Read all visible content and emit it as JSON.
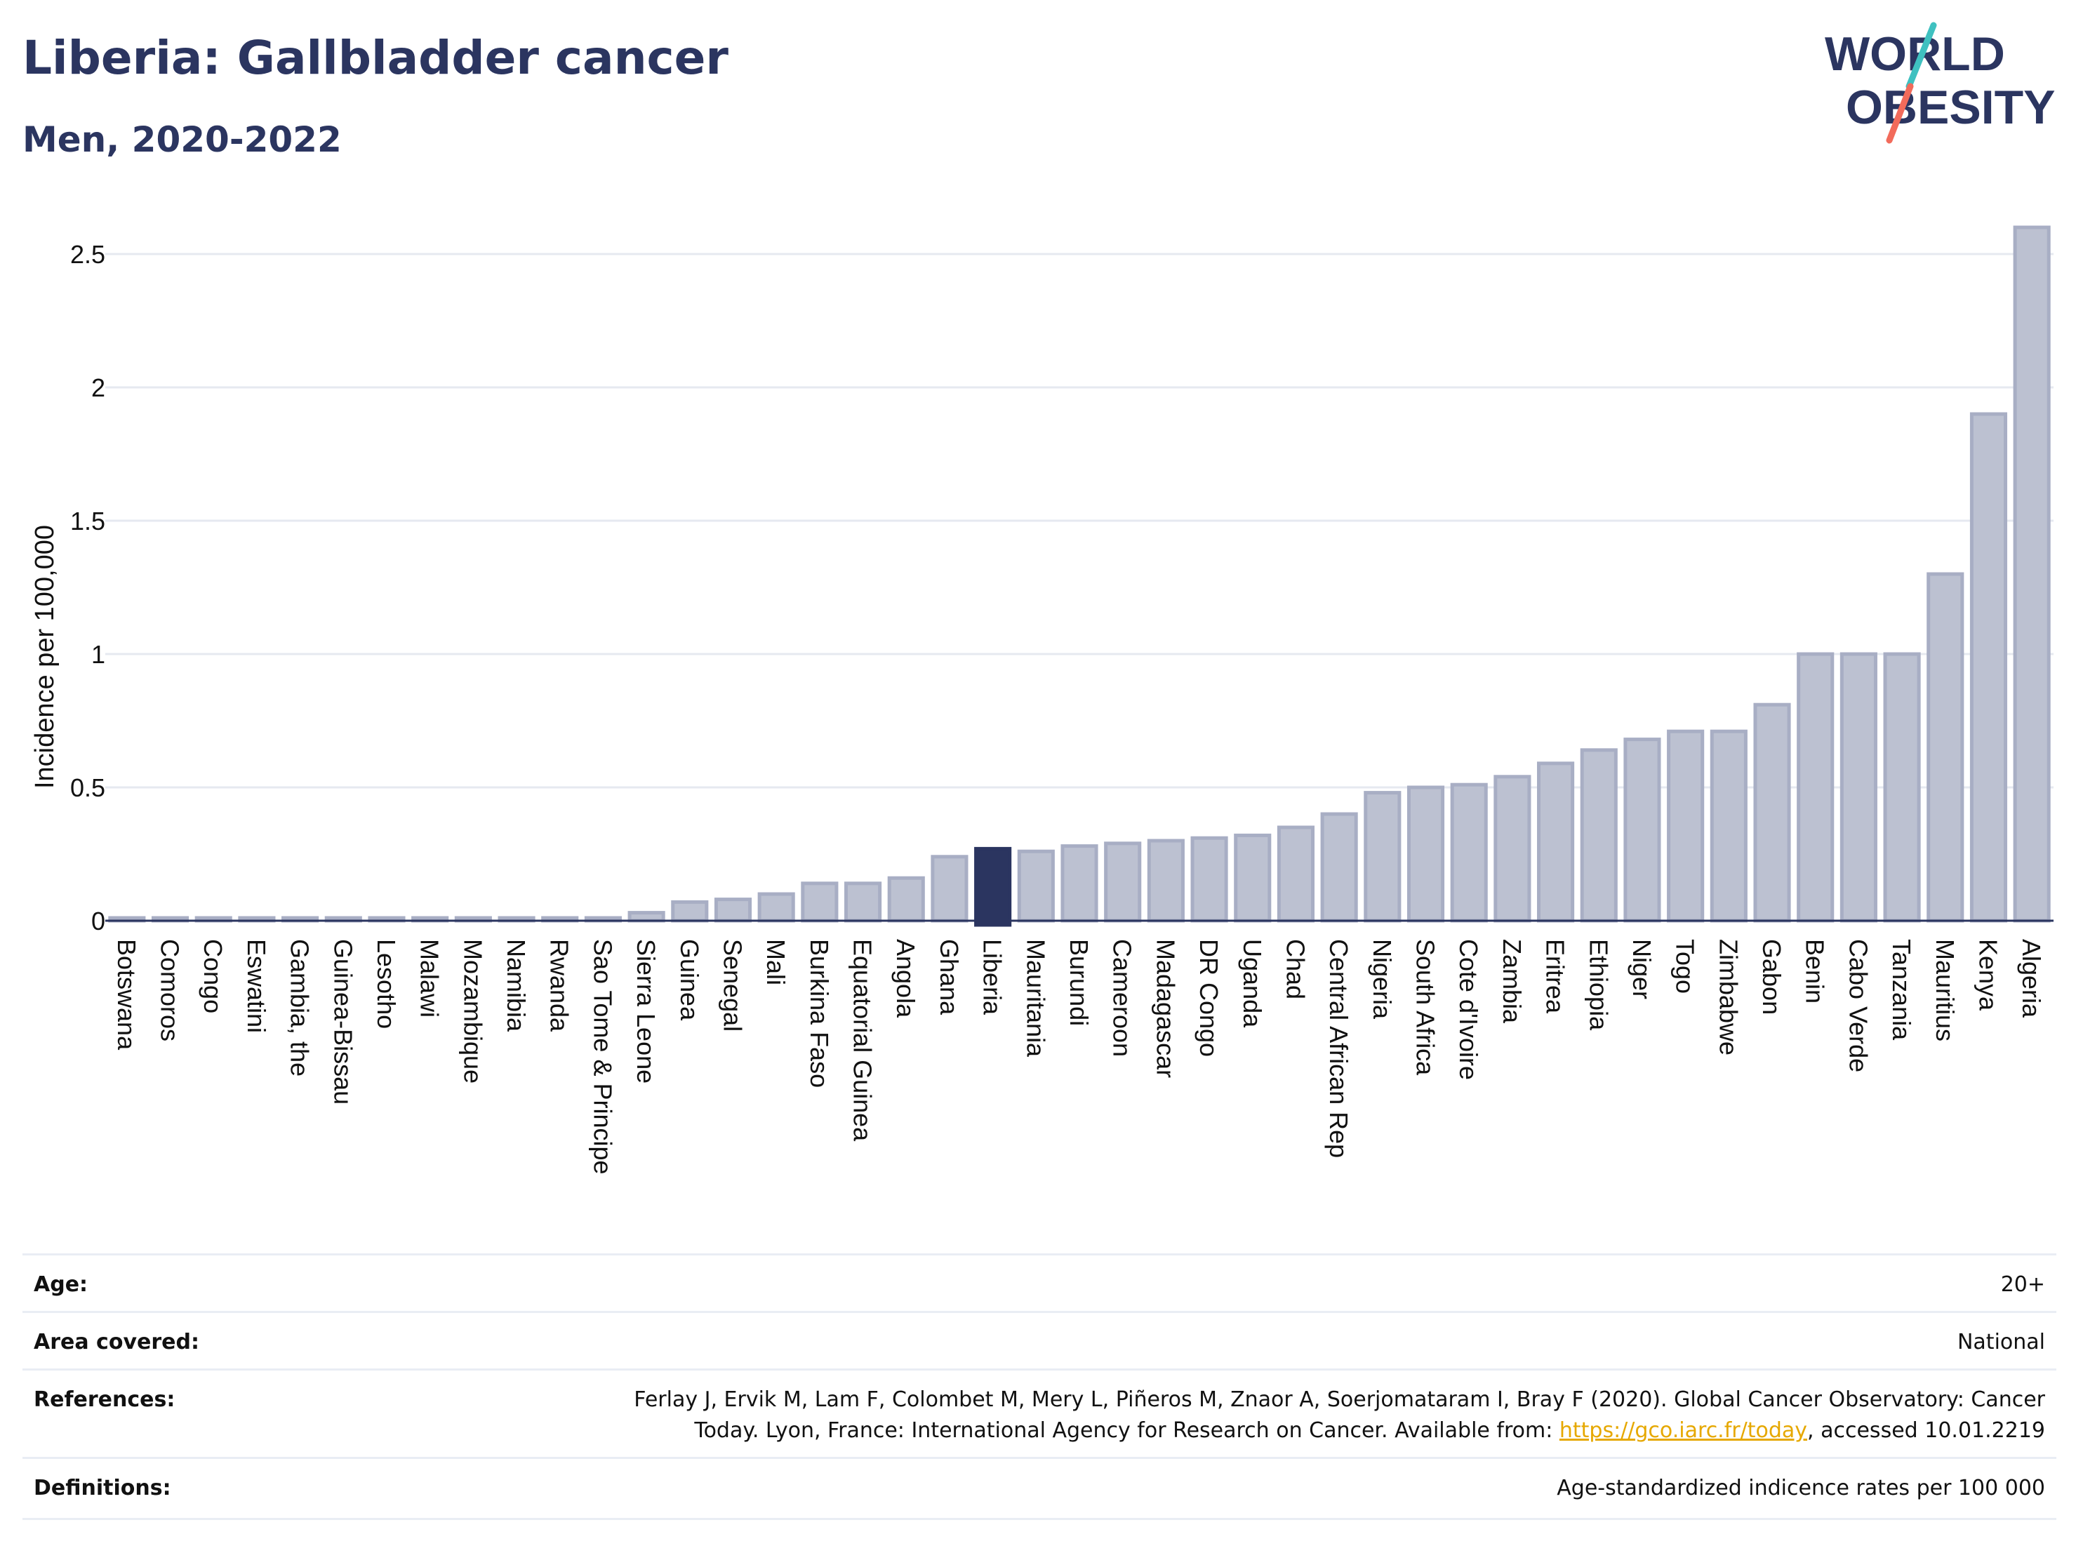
{
  "header": {
    "title": "Liberia: Gallbladder cancer",
    "subtitle": "Men, 2020-2022",
    "logo_text_line1": "WORLD",
    "logo_text_line2": "OBESITY"
  },
  "colors": {
    "highlight_bar": "#2b3560",
    "default_bar": "#bcc1d1",
    "bar_border": "#a8aec4",
    "logo_teal": "#3fc1c0",
    "logo_coral": "#f26b5b",
    "link": "#e6a800"
  },
  "chart_data": {
    "type": "bar",
    "title": "Liberia: Gallbladder cancer",
    "subtitle": "Men, 2020-2022",
    "xlabel": "",
    "ylabel": "Incidence per 100,000",
    "ylim": [
      0,
      2.6
    ],
    "yticks": [
      0,
      0.5,
      1,
      1.5,
      2,
      2.5
    ],
    "ytick_labels": [
      "0",
      "0.5",
      "1",
      "1.5",
      "2",
      "2.5"
    ],
    "grid": true,
    "highlight": "Liberia",
    "categories": [
      "Botswana",
      "Comoros",
      "Congo",
      "Eswatini",
      "Gambia, the",
      "Guinea-Bissau",
      "Lesotho",
      "Malawi",
      "Mozambique",
      "Namibia",
      "Rwanda",
      "Sao Tome & Principe",
      "Sierra Leone",
      "Guinea",
      "Senegal",
      "Mali",
      "Burkina Faso",
      "Equatorial Guinea",
      "Angola",
      "Ghana",
      "Liberia",
      "Mauritania",
      "Burundi",
      "Cameroon",
      "Madagascar",
      "DR Congo",
      "Uganda",
      "Chad",
      "Central African Rep",
      "Nigeria",
      "South Africa",
      "Cote d'Ivoire",
      "Zambia",
      "Eritrea",
      "Ethiopia",
      "Niger",
      "Togo",
      "Zimbabwe",
      "Gabon",
      "Benin",
      "Cabo Verde",
      "Tanzania",
      "Mauritius",
      "Kenya",
      "Algeria"
    ],
    "values": [
      0.01,
      0.01,
      0.01,
      0.01,
      0.01,
      0.01,
      0.01,
      0.01,
      0.01,
      0.01,
      0.01,
      0.01,
      0.03,
      0.07,
      0.08,
      0.1,
      0.14,
      0.14,
      0.16,
      0.24,
      0.27,
      0.26,
      0.28,
      0.29,
      0.3,
      0.31,
      0.32,
      0.35,
      0.4,
      0.48,
      0.5,
      0.51,
      0.54,
      0.59,
      0.64,
      0.68,
      0.71,
      0.71,
      0.81,
      1.0,
      1.0,
      1.0,
      1.3,
      1.9,
      2.6
    ]
  },
  "meta": {
    "age_label": "Age:",
    "age_value": "20+",
    "area_label": "Area covered:",
    "area_value": "National",
    "references_label": "References:",
    "references_line1": "Ferlay J, Ervik M, Lam F, Colombet M, Mery L, Piñeros M, Znaor A, Soerjomataram I, Bray F (2020). Global Cancer Observatory: Cancer",
    "references_line2_pre": "Today. Lyon, France: International Agency for Research on Cancer. Available from: ",
    "references_link": "https://gco.iarc.fr/today",
    "references_line2_post": ", accessed 10.01.2219",
    "definitions_label": "Definitions:",
    "definitions_value": "Age-standardized indicence rates per 100 000"
  }
}
